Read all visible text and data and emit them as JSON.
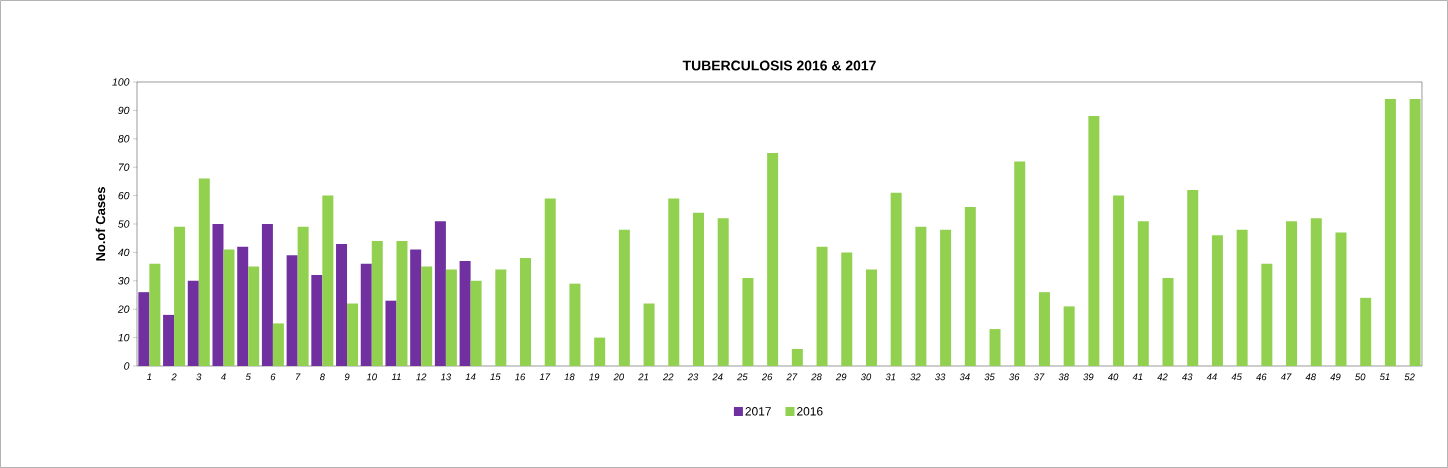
{
  "chart_data": {
    "type": "bar",
    "title": "TUBERCULOSIS 2016 & 2017",
    "ylabel": "No.of Cases",
    "categories": [
      "1",
      "2",
      "3",
      "4",
      "5",
      "6",
      "7",
      "8",
      "9",
      "10",
      "11",
      "12",
      "13",
      "14",
      "15",
      "16",
      "17",
      "18",
      "19",
      "20",
      "21",
      "22",
      "23",
      "24",
      "25",
      "26",
      "27",
      "28",
      "29",
      "30",
      "31",
      "32",
      "33",
      "34",
      "35",
      "36",
      "37",
      "38",
      "39",
      "40",
      "41",
      "42",
      "43",
      "44",
      "45",
      "46",
      "47",
      "48",
      "49",
      "50",
      "51",
      "52"
    ],
    "series": [
      {
        "name": "2017",
        "color": "#7030a0",
        "values": [
          26,
          18,
          30,
          50,
          42,
          50,
          39,
          32,
          43,
          36,
          23,
          41,
          51,
          37,
          null,
          null,
          null,
          null,
          null,
          null,
          null,
          null,
          null,
          null,
          null,
          null,
          null,
          null,
          null,
          null,
          null,
          null,
          null,
          null,
          null,
          null,
          null,
          null,
          null,
          null,
          null,
          null,
          null,
          null,
          null,
          null,
          null,
          null,
          null,
          null,
          null,
          null
        ]
      },
      {
        "name": "2016",
        "color": "#92d050",
        "values": [
          36,
          49,
          66,
          41,
          35,
          15,
          49,
          60,
          22,
          44,
          44,
          35,
          34,
          30,
          34,
          38,
          59,
          29,
          10,
          48,
          22,
          59,
          54,
          52,
          31,
          75,
          6,
          42,
          40,
          34,
          61,
          49,
          48,
          56,
          13,
          72,
          26,
          21,
          88,
          60,
          51,
          31,
          62,
          46,
          48,
          36,
          51,
          52,
          47,
          24,
          94,
          94
        ]
      }
    ],
    "ylim": [
      0,
      100
    ],
    "yticks": [
      0,
      10,
      20,
      30,
      40,
      50,
      60,
      70,
      80,
      90,
      100
    ],
    "legend": "bottom"
  }
}
